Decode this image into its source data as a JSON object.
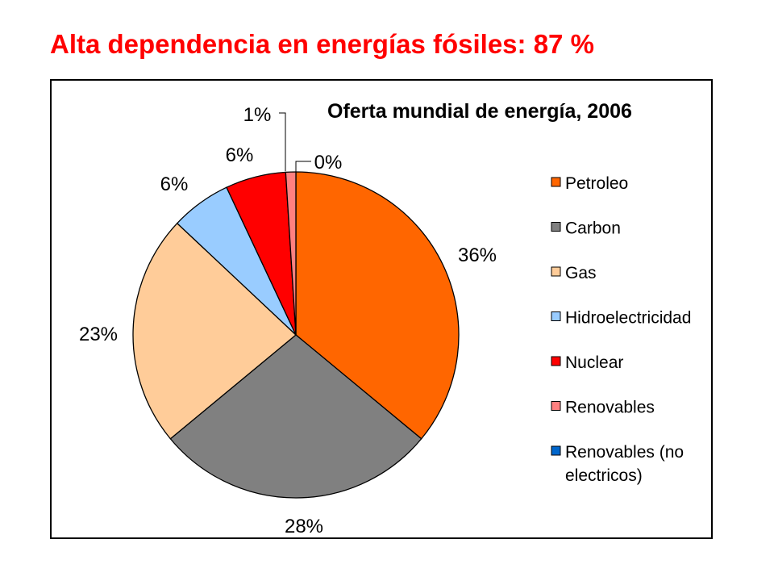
{
  "slide": {
    "title": "Alta dependencia en energías fósiles: 87 %"
  },
  "chart_data": {
    "type": "pie",
    "title": "Oferta mundial de energía, 2006",
    "legend_position": "right",
    "slices": [
      {
        "name": "Petroleo",
        "value": 36,
        "label": "36%",
        "color": "#ff6600"
      },
      {
        "name": "Carbon",
        "value": 28,
        "label": "28%",
        "color": "#808080"
      },
      {
        "name": "Gas",
        "value": 23,
        "label": "23%",
        "color": "#ffcc99"
      },
      {
        "name": "Hidroelectricidad",
        "value": 6,
        "label": "6%",
        "color": "#99ccff"
      },
      {
        "name": "Nuclear",
        "value": 6,
        "label": "6%",
        "color": "#ff0000"
      },
      {
        "name": "Renovables",
        "value": 1,
        "label": "1%",
        "color": "#ff8080"
      },
      {
        "name": "Renovables (no electricos)",
        "value": 0,
        "label": "0%",
        "color": "#0066cc"
      }
    ],
    "legend": [
      {
        "lines": [
          "Petroleo"
        ]
      },
      {
        "lines": [
          "Carbon"
        ]
      },
      {
        "lines": [
          "Gas"
        ]
      },
      {
        "lines": [
          "Hidroelectricidad"
        ]
      },
      {
        "lines": [
          "Nuclear"
        ]
      },
      {
        "lines": [
          "Renovables"
        ]
      },
      {
        "lines": [
          "Renovables (no",
          "electricos)"
        ]
      }
    ]
  }
}
